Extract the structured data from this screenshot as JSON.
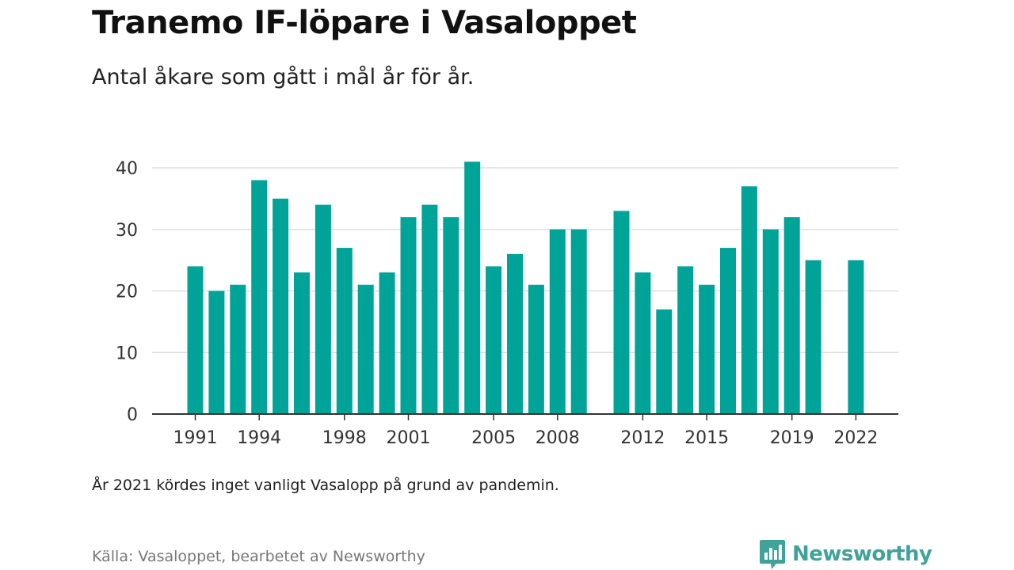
{
  "header": {
    "title": "Tranemo IF-löpare i Vasaloppet",
    "subtitle": "Antal åkare som gått i mål år för år."
  },
  "footer": {
    "note": "År 2021 kördes inget vanligt Vasalopp på grund av pandemin.",
    "source": "Källa: Vasaloppet, bearbetet av Newsworthy",
    "brand": "Newsworthy",
    "brand_icon": "newsworthy-chart-logo-icon"
  },
  "colors": {
    "bar": "#00a398",
    "grid": "#dddddd",
    "axis": "#333333",
    "brand": "#3fa39a"
  },
  "chart_data": {
    "type": "bar",
    "title": "Tranemo IF-löpare i Vasaloppet",
    "subtitle": "Antal åkare som gått i mål år för år.",
    "xlabel": "",
    "ylabel": "",
    "ylim": [
      0,
      40
    ],
    "yticks": [
      0,
      10,
      20,
      30,
      40
    ],
    "grid": true,
    "legend": "none",
    "xtick_labels": [
      "1991",
      "1994",
      "1998",
      "2001",
      "2005",
      "2008",
      "2012",
      "2015",
      "2019",
      "2022"
    ],
    "categories": [
      "1991",
      "1992",
      "1993",
      "1994",
      "1995",
      "1996",
      "1997",
      "1998",
      "1999",
      "2000",
      "2001",
      "2002",
      "2003",
      "2004",
      "2005",
      "2006",
      "2007",
      "2008",
      "2009",
      "2010",
      "2011",
      "2012",
      "2013",
      "2014",
      "2015",
      "2016",
      "2017",
      "2018",
      "2019",
      "2020",
      "2021",
      "2022"
    ],
    "values": [
      24,
      20,
      21,
      38,
      35,
      23,
      34,
      27,
      21,
      23,
      32,
      34,
      32,
      41,
      24,
      26,
      21,
      30,
      30,
      null,
      33,
      23,
      17,
      24,
      21,
      27,
      37,
      30,
      32,
      25,
      null,
      25
    ]
  }
}
